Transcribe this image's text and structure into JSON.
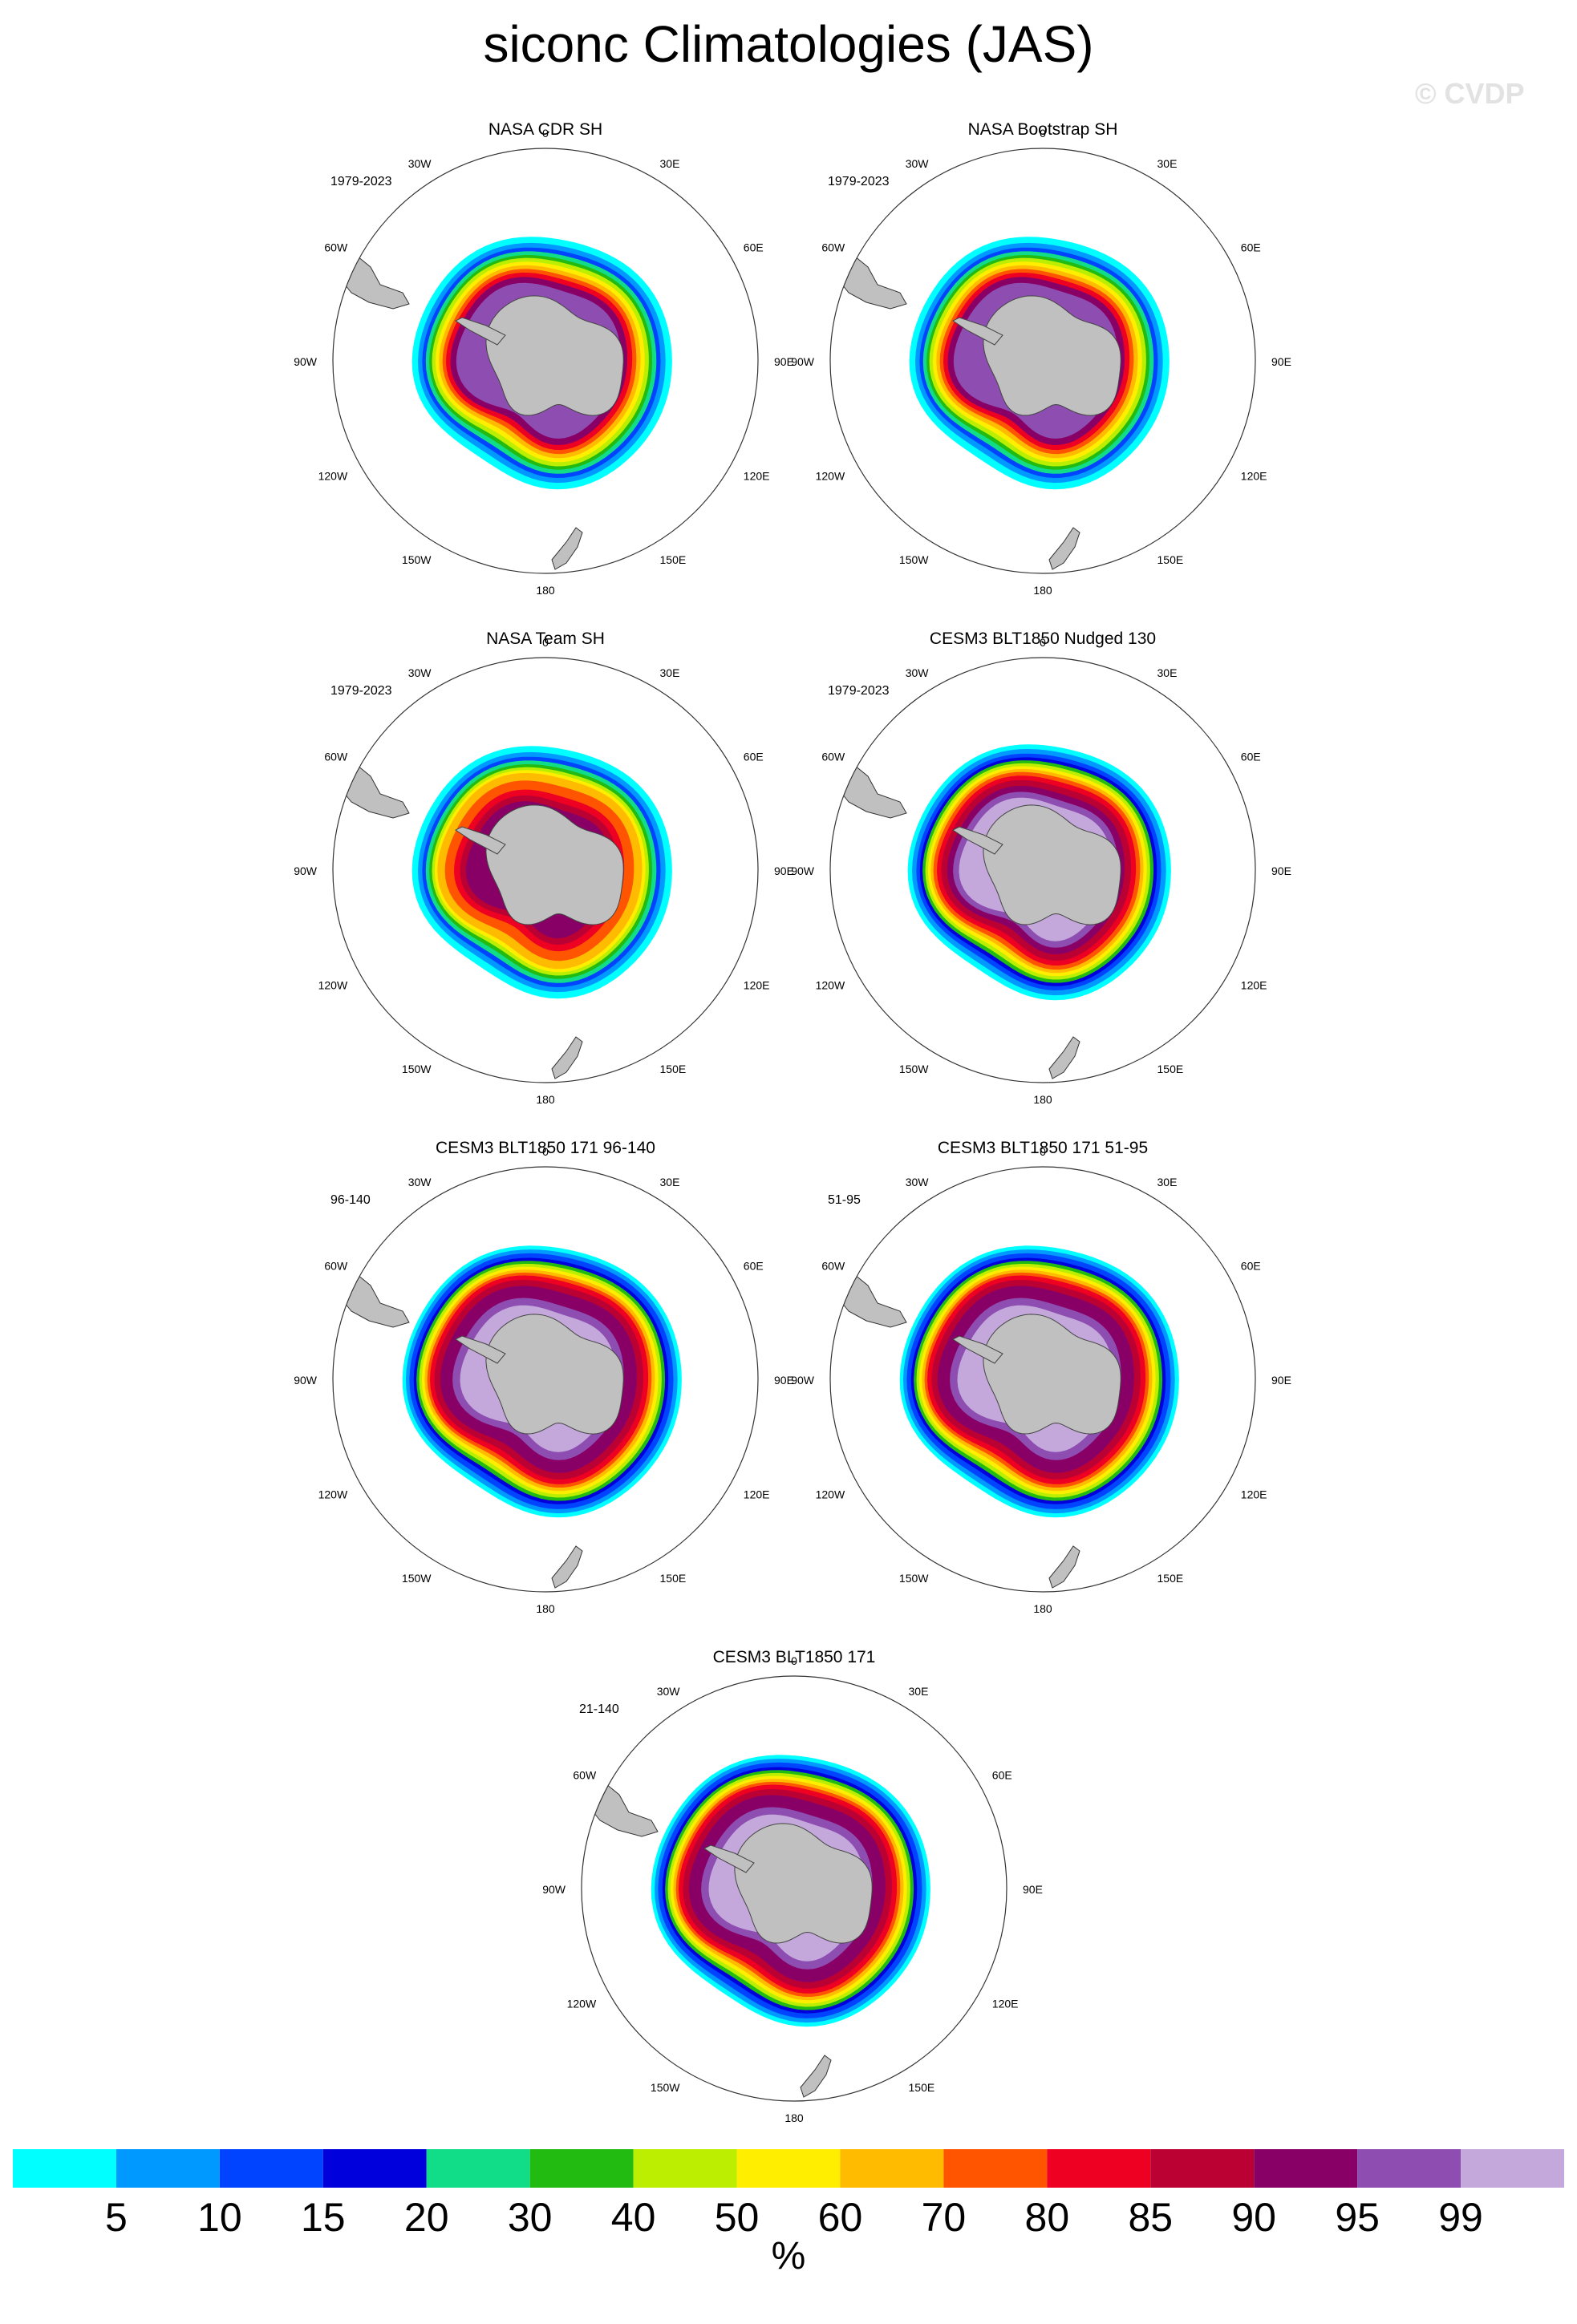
{
  "title": "siconc Climatologies (JAS)",
  "watermark": "© CVDP",
  "lon_labels": [
    "0",
    "30E",
    "60E",
    "90E",
    "120E",
    "150E",
    "180",
    "150W",
    "120W",
    "90W",
    "60W",
    "30W"
  ],
  "panels": [
    {
      "title": "NASA CDR SH",
      "period": "1979-2023",
      "ice_style": "obs_cdr"
    },
    {
      "title": "NASA Bootstrap SH",
      "period": "1979-2023",
      "ice_style": "obs_cdr"
    },
    {
      "title": "NASA Team SH",
      "period": "1979-2023",
      "ice_style": "obs_team"
    },
    {
      "title": "CESM3 BLT1850 Nudged 130",
      "period": "1979-2023",
      "ice_style": "model"
    },
    {
      "title": "CESM3 BLT1850 171 96-140",
      "period": "96-140",
      "ice_style": "model_wide"
    },
    {
      "title": "CESM3 BLT1850 171 51-95",
      "period": "51-95",
      "ice_style": "model_wide"
    },
    {
      "title": "CESM3 BLT1850 171",
      "period": "21-140",
      "ice_style": "model_wide"
    }
  ],
  "colorbar": {
    "units": "%",
    "labels": [
      "5",
      "10",
      "15",
      "20",
      "30",
      "40",
      "50",
      "60",
      "70",
      "80",
      "85",
      "90",
      "95",
      "99"
    ],
    "colors": [
      "#00ffff",
      "#0099ff",
      "#0044ff",
      "#0000dd",
      "#11dd88",
      "#22bb11",
      "#bbee00",
      "#ffee00",
      "#ffbb00",
      "#ff5500",
      "#ee0022",
      "#bb0033",
      "#880066",
      "#8e4db0",
      "#c4a8dc"
    ]
  },
  "land_color": "#c0c0c0"
}
